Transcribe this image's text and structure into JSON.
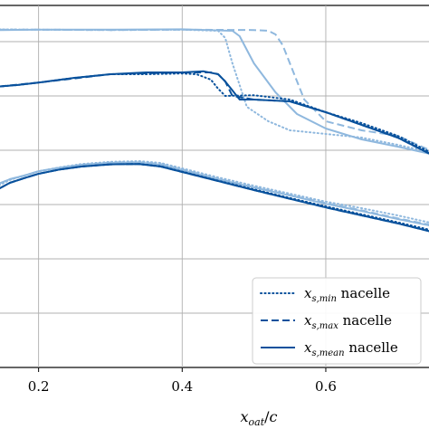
{
  "chart_data": {
    "type": "line",
    "title": "",
    "xlabel": "x_oat/c",
    "ylabel": "",
    "xlim": [
      0.145,
      0.745
    ],
    "ylim": [
      0,
      1
    ],
    "grid": true,
    "legend_position": "lower-right",
    "x_ticks": [
      {
        "value": 0.2,
        "label": "0.2"
      },
      {
        "value": 0.4,
        "label": "0.4"
      },
      {
        "value": 0.6,
        "label": "0.6"
      }
    ],
    "y_grid": [
      0.15,
      0.3,
      0.45,
      0.6,
      0.75,
      0.9
    ],
    "legend": [
      {
        "var": "x",
        "sub": "s,min",
        "suffix": "nacelle",
        "style": "dotted"
      },
      {
        "var": "x",
        "sub": "s,max",
        "suffix": "nacelle",
        "style": "dashed"
      },
      {
        "var": "x",
        "sub": "s,mean",
        "suffix": "nacelle",
        "style": "solid"
      }
    ],
    "colors": {
      "dark": "#08519c",
      "light": "#8fb8de"
    },
    "series": [
      {
        "group": "upper-light",
        "color": "light",
        "style": "solid",
        "x": [
          0.145,
          0.2,
          0.3,
          0.4,
          0.47,
          0.48,
          0.5,
          0.53,
          0.56,
          0.6,
          0.65,
          0.7,
          0.745
        ],
        "y": [
          0.932,
          0.933,
          0.933,
          0.934,
          0.93,
          0.915,
          0.84,
          0.76,
          0.7,
          0.66,
          0.63,
          0.61,
          0.59
        ]
      },
      {
        "group": "upper-light",
        "color": "light",
        "style": "dotted",
        "x": [
          0.145,
          0.2,
          0.3,
          0.4,
          0.45,
          0.46,
          0.47,
          0.49,
          0.52,
          0.55,
          0.6,
          0.65,
          0.7,
          0.745
        ],
        "y": [
          0.934,
          0.933,
          0.932,
          0.933,
          0.93,
          0.91,
          0.84,
          0.72,
          0.68,
          0.655,
          0.645,
          0.635,
          0.615,
          0.595
        ]
      },
      {
        "group": "upper-light",
        "color": "light",
        "style": "dashed",
        "x": [
          0.145,
          0.2,
          0.3,
          0.4,
          0.5,
          0.52,
          0.53,
          0.54,
          0.55,
          0.57,
          0.6,
          0.65,
          0.7,
          0.745
        ],
        "y": [
          0.933,
          0.933,
          0.932,
          0.933,
          0.932,
          0.93,
          0.92,
          0.89,
          0.84,
          0.74,
          0.68,
          0.655,
          0.64,
          0.6
        ]
      },
      {
        "group": "upper-dark",
        "color": "dark",
        "style": "solid",
        "x": [
          0.145,
          0.17,
          0.2,
          0.25,
          0.3,
          0.35,
          0.4,
          0.43,
          0.45,
          0.46,
          0.48,
          0.5,
          0.55,
          0.6,
          0.65,
          0.7,
          0.745
        ],
        "y": [
          0.776,
          0.78,
          0.787,
          0.8,
          0.81,
          0.815,
          0.815,
          0.818,
          0.81,
          0.79,
          0.74,
          0.74,
          0.735,
          0.705,
          0.67,
          0.635,
          0.59
        ]
      },
      {
        "group": "upper-dark",
        "color": "dark",
        "style": "dotted",
        "x": [
          0.145,
          0.17,
          0.2,
          0.25,
          0.3,
          0.35,
          0.4,
          0.42,
          0.44,
          0.45,
          0.46,
          0.5,
          0.55,
          0.6,
          0.65,
          0.7,
          0.745
        ],
        "y": [
          0.776,
          0.78,
          0.787,
          0.8,
          0.81,
          0.81,
          0.812,
          0.81,
          0.795,
          0.77,
          0.75,
          0.752,
          0.74,
          0.705,
          0.675,
          0.64,
          0.595
        ]
      },
      {
        "group": "upper-dark",
        "color": "dark",
        "style": "dashed",
        "x": [
          0.145,
          0.2,
          0.3,
          0.4,
          0.44,
          0.45,
          0.46,
          0.47,
          0.5,
          0.55,
          0.6,
          0.65,
          0.7,
          0.745
        ],
        "y": [
          0.776,
          0.787,
          0.81,
          0.815,
          0.815,
          0.81,
          0.79,
          0.75,
          0.74,
          0.735,
          0.705,
          0.67,
          0.635,
          0.59
        ]
      },
      {
        "group": "lower-light",
        "color": "light",
        "style": "solid",
        "x": [
          0.145,
          0.16,
          0.18,
          0.2,
          0.23,
          0.26,
          0.3,
          0.34,
          0.37,
          0.4,
          0.45,
          0.5,
          0.55,
          0.6,
          0.65,
          0.7,
          0.745
        ],
        "y": [
          0.508,
          0.52,
          0.53,
          0.542,
          0.552,
          0.56,
          0.565,
          0.566,
          0.56,
          0.545,
          0.52,
          0.497,
          0.475,
          0.452,
          0.432,
          0.41,
          0.392
        ]
      },
      {
        "group": "lower-light",
        "color": "light",
        "style": "dotted",
        "x": [
          0.145,
          0.16,
          0.18,
          0.2,
          0.23,
          0.26,
          0.3,
          0.34,
          0.37,
          0.4,
          0.45,
          0.5,
          0.55,
          0.6,
          0.65,
          0.7,
          0.745
        ],
        "y": [
          0.503,
          0.518,
          0.53,
          0.542,
          0.553,
          0.562,
          0.568,
          0.57,
          0.565,
          0.55,
          0.525,
          0.502,
          0.48,
          0.458,
          0.44,
          0.42,
          0.4
        ]
      },
      {
        "group": "lower-light",
        "color": "light",
        "style": "dashed",
        "x": [
          0.145,
          0.16,
          0.18,
          0.2,
          0.23,
          0.26,
          0.3,
          0.34,
          0.37,
          0.4,
          0.45,
          0.5,
          0.55,
          0.6,
          0.65,
          0.7,
          0.745
        ],
        "y": [
          0.508,
          0.52,
          0.53,
          0.542,
          0.552,
          0.56,
          0.566,
          0.567,
          0.562,
          0.547,
          0.521,
          0.498,
          0.476,
          0.454,
          0.434,
          0.412,
          0.394
        ]
      },
      {
        "group": "lower-dark",
        "color": "dark",
        "style": "solid",
        "x": [
          0.145,
          0.16,
          0.18,
          0.2,
          0.23,
          0.26,
          0.3,
          0.34,
          0.37,
          0.4,
          0.45,
          0.5,
          0.55,
          0.6,
          0.65,
          0.7,
          0.745
        ],
        "y": [
          0.494,
          0.51,
          0.523,
          0.535,
          0.547,
          0.555,
          0.561,
          0.562,
          0.555,
          0.54,
          0.515,
          0.49,
          0.466,
          0.442,
          0.42,
          0.398,
          0.376
        ]
      },
      {
        "group": "lower-dark",
        "color": "dark",
        "style": "dotted",
        "x": [
          0.145,
          0.16,
          0.18,
          0.2,
          0.23,
          0.26,
          0.3,
          0.34,
          0.37,
          0.4,
          0.45,
          0.5,
          0.55,
          0.6,
          0.65,
          0.7,
          0.745
        ],
        "y": [
          0.494,
          0.51,
          0.523,
          0.535,
          0.547,
          0.555,
          0.561,
          0.562,
          0.556,
          0.541,
          0.516,
          0.492,
          0.468,
          0.445,
          0.423,
          0.401,
          0.38
        ]
      },
      {
        "group": "lower-dark",
        "color": "dark",
        "style": "dashed",
        "x": [
          0.145,
          0.16,
          0.18,
          0.2,
          0.23,
          0.26,
          0.3,
          0.34,
          0.37,
          0.4,
          0.45,
          0.5,
          0.55,
          0.6,
          0.65,
          0.7,
          0.745
        ],
        "y": [
          0.494,
          0.51,
          0.523,
          0.535,
          0.547,
          0.555,
          0.561,
          0.562,
          0.555,
          0.54,
          0.515,
          0.49,
          0.466,
          0.442,
          0.42,
          0.398,
          0.376
        ]
      }
    ]
  }
}
